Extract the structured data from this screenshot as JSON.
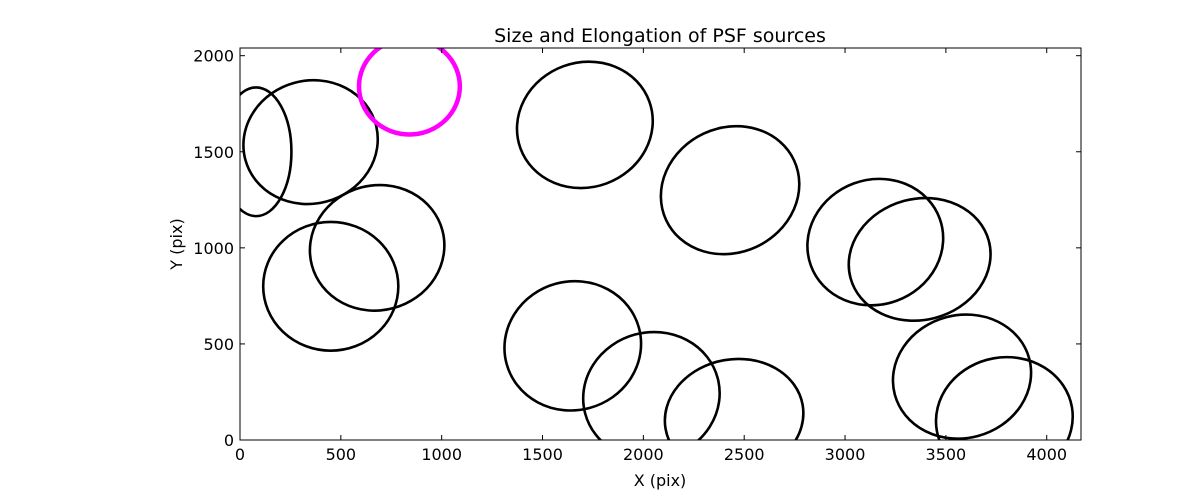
{
  "chart_data": {
    "type": "scatter",
    "title": "Size and Elongation of PSF sources",
    "xlabel": "X (pix)",
    "ylabel": "Y (pix)",
    "xlim": [
      0,
      4170
    ],
    "ylim": [
      0,
      2040
    ],
    "xticks": [
      0,
      500,
      1000,
      1500,
      2000,
      2500,
      3000,
      3500,
      4000
    ],
    "yticks": [
      0,
      500,
      1000,
      1500,
      2000
    ],
    "grid": false,
    "legend": "none",
    "marker": "ellipse outline",
    "series": [
      {
        "color": "#000000",
        "points": [
          {
            "x": 80,
            "y": 1500,
            "width": 350,
            "height": 670,
            "angle": 0
          },
          {
            "x": 350,
            "y": 1550,
            "width": 670,
            "height": 640,
            "angle": 15
          },
          {
            "x": 680,
            "y": 1000,
            "width": 670,
            "height": 650,
            "angle": 15
          },
          {
            "x": 450,
            "y": 800,
            "width": 670,
            "height": 670,
            "angle": 0
          },
          {
            "x": 1710,
            "y": 1640,
            "width": 680,
            "height": 650,
            "angle": 20
          },
          {
            "x": 2430,
            "y": 1300,
            "width": 700,
            "height": 650,
            "angle": 25
          },
          {
            "x": 3150,
            "y": 1030,
            "width": 680,
            "height": 650,
            "angle": 20
          },
          {
            "x": 3370,
            "y": 940,
            "width": 710,
            "height": 630,
            "angle": 15
          },
          {
            "x": 1650,
            "y": 490,
            "width": 680,
            "height": 670,
            "angle": 15
          },
          {
            "x": 2040,
            "y": 230,
            "width": 680,
            "height": 660,
            "angle": 15
          },
          {
            "x": 2450,
            "y": 120,
            "width": 690,
            "height": 600,
            "angle": 10
          },
          {
            "x": 3580,
            "y": 330,
            "width": 690,
            "height": 640,
            "angle": 15
          },
          {
            "x": 3790,
            "y": 110,
            "width": 680,
            "height": 640,
            "angle": 10
          }
        ]
      },
      {
        "color": "#ff00ff",
        "points": [
          {
            "x": 840,
            "y": 1840,
            "width": 500,
            "height": 500,
            "angle": 0
          }
        ]
      }
    ]
  }
}
